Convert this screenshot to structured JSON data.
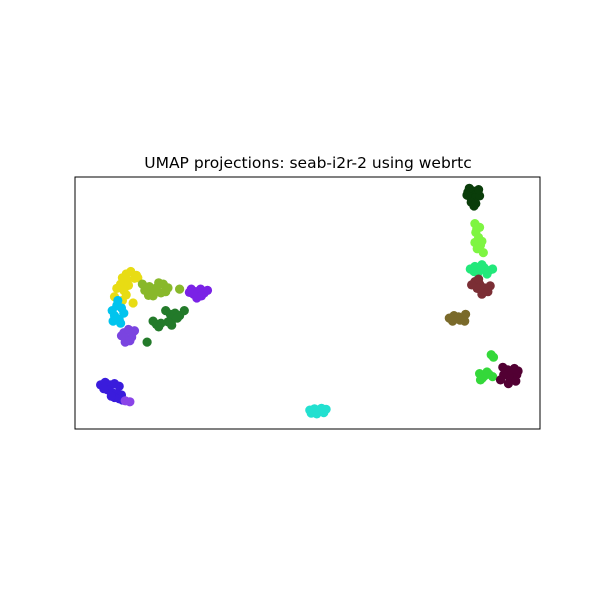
{
  "chart_data": {
    "type": "scatter",
    "title": "UMAP projections: seab-i2r-2 using webrtc",
    "xlabel": "",
    "ylabel": "",
    "xlim": [
      0,
      100
    ],
    "ylim": [
      0,
      100
    ],
    "grid": false,
    "legend": "none",
    "series": [
      {
        "color": "#0a3d0a",
        "points": [
          [
            84.5,
            94
          ],
          [
            85.5,
            94.5
          ],
          [
            86.5,
            93.5
          ],
          [
            85,
            92
          ],
          [
            86,
            91.5
          ],
          [
            87,
            92.5
          ],
          [
            85.2,
            90
          ],
          [
            86.2,
            89.5
          ],
          [
            84.8,
            95.5
          ],
          [
            86.8,
            95
          ],
          [
            85.8,
            88.5
          ],
          [
            84.3,
            92.8
          ]
        ]
      },
      {
        "color": "#7ef542",
        "points": [
          [
            86,
            81.5
          ],
          [
            87,
            80
          ],
          [
            86.2,
            78
          ],
          [
            86.8,
            76
          ],
          [
            86,
            74
          ],
          [
            87.2,
            73
          ],
          [
            86.5,
            71.5
          ],
          [
            87.5,
            74.5
          ],
          [
            86.4,
            79.5
          ],
          [
            87.8,
            70
          ]
        ]
      },
      {
        "color": "#22e87a",
        "points": [
          [
            85,
            63.5
          ],
          [
            86,
            64.5
          ],
          [
            87,
            63
          ],
          [
            88,
            64
          ],
          [
            89,
            62.8
          ],
          [
            85.8,
            62.5
          ],
          [
            87.5,
            65.2
          ],
          [
            86.6,
            61.8
          ],
          [
            88.6,
            61.5
          ],
          [
            89.8,
            63.5
          ]
        ]
      },
      {
        "color": "#7b2e35",
        "points": [
          [
            86,
            58.5
          ],
          [
            87,
            57.5
          ],
          [
            88,
            56
          ],
          [
            88.8,
            54.5
          ],
          [
            87.5,
            53.5
          ],
          [
            86.5,
            55.8
          ],
          [
            85.3,
            57.2
          ],
          [
            89.3,
            56.8
          ],
          [
            86.8,
            59.5
          ]
        ]
      },
      {
        "color": "#7a6a2a",
        "points": [
          [
            80.5,
            44
          ],
          [
            81.5,
            45
          ],
          [
            82.5,
            44.5
          ],
          [
            83.5,
            44
          ],
          [
            84,
            45.5
          ],
          [
            81.2,
            42.8
          ],
          [
            82.8,
            43.2
          ],
          [
            83.8,
            42.8
          ]
        ]
      },
      {
        "color": "#34d83a",
        "points": [
          [
            89.5,
            29.5
          ],
          [
            90,
            28.5
          ],
          [
            87,
            22
          ],
          [
            88,
            21
          ],
          [
            89,
            21.8
          ],
          [
            87.6,
            20.2
          ],
          [
            88.6,
            22.6
          ],
          [
            89.8,
            20.8
          ],
          [
            87.2,
            19.5
          ]
        ]
      },
      {
        "color": "#520033",
        "points": [
          [
            92,
            24.5
          ],
          [
            93,
            23.5
          ],
          [
            94,
            22
          ],
          [
            95,
            21.5
          ],
          [
            93.5,
            20
          ],
          [
            94.8,
            19
          ],
          [
            93.2,
            18
          ],
          [
            92.2,
            21.5
          ],
          [
            95.3,
            23
          ],
          [
            91.5,
            19.5
          ],
          [
            94.5,
            24
          ]
        ]
      },
      {
        "color": "#e8dc14",
        "points": [
          [
            10.2,
            60
          ],
          [
            11,
            61.5
          ],
          [
            12,
            62.5
          ],
          [
            11.2,
            59
          ],
          [
            9.8,
            57.5
          ],
          [
            10.5,
            55
          ],
          [
            11.5,
            57
          ],
          [
            8.5,
            52.5
          ],
          [
            10.2,
            51
          ],
          [
            12.5,
            50
          ],
          [
            11,
            53.2
          ],
          [
            12.8,
            59.8
          ],
          [
            13.2,
            61
          ],
          [
            9,
            55.8
          ],
          [
            13.5,
            60
          ]
        ]
      },
      {
        "color": "#00c4ee",
        "points": [
          [
            8,
            47
          ],
          [
            9,
            49
          ],
          [
            10,
            48
          ],
          [
            8.5,
            45
          ],
          [
            9.5,
            43.5
          ],
          [
            10.5,
            46
          ],
          [
            8.2,
            42.8
          ],
          [
            9.8,
            42
          ],
          [
            9.2,
            51
          ],
          [
            8.8,
            44
          ]
        ]
      },
      {
        "color": "#88b82a",
        "points": [
          [
            14.5,
            57.5
          ],
          [
            16,
            56.5
          ],
          [
            17.5,
            56
          ],
          [
            18,
            58
          ],
          [
            19,
            57.5
          ],
          [
            20,
            56
          ],
          [
            19.5,
            54.5
          ],
          [
            18.5,
            54
          ],
          [
            17,
            54.5
          ],
          [
            15.8,
            53
          ],
          [
            15,
            55
          ],
          [
            22.5,
            55.5
          ],
          [
            16.8,
            52.8
          ]
        ]
      },
      {
        "color": "#7a22e6",
        "points": [
          [
            25,
            55.5
          ],
          [
            26,
            54.5
          ],
          [
            27,
            55.5
          ],
          [
            26.5,
            53
          ],
          [
            27.8,
            54
          ],
          [
            28.5,
            55
          ],
          [
            25.5,
            53.5
          ],
          [
            26.2,
            52
          ],
          [
            24.6,
            54.2
          ],
          [
            27.2,
            52.8
          ]
        ]
      },
      {
        "color": "#237a2a",
        "points": [
          [
            19.5,
            47
          ],
          [
            20.5,
            45.5
          ],
          [
            21.5,
            46
          ],
          [
            22.5,
            45
          ],
          [
            23.5,
            47
          ],
          [
            21,
            43.5
          ],
          [
            20,
            42.5
          ],
          [
            18.5,
            42
          ],
          [
            17.5,
            41.5
          ],
          [
            16.8,
            42.8
          ],
          [
            18,
            40.5
          ],
          [
            20.8,
            41.2
          ],
          [
            22,
            44
          ],
          [
            15.5,
            34.5
          ]
        ]
      },
      {
        "color": "#7a44e0",
        "points": [
          [
            10.5,
            38.2
          ],
          [
            11.5,
            39.5
          ],
          [
            12.5,
            38.5
          ],
          [
            11,
            36
          ],
          [
            12.2,
            36.5
          ],
          [
            10,
            37
          ],
          [
            10.8,
            34.5
          ],
          [
            11.8,
            35
          ],
          [
            12.8,
            39
          ]
        ]
      },
      {
        "color": "#3a1cdc",
        "points": [
          [
            5.5,
            17.5
          ],
          [
            6.5,
            18.5
          ],
          [
            7.5,
            17.5
          ],
          [
            8.5,
            18
          ],
          [
            9.5,
            17
          ],
          [
            7,
            15.5
          ],
          [
            8,
            14.5
          ],
          [
            9,
            14
          ],
          [
            10,
            13.5
          ],
          [
            8.5,
            12.5
          ],
          [
            9.5,
            12
          ],
          [
            10.2,
            11.5
          ],
          [
            6.2,
            16
          ],
          [
            7.8,
            13
          ]
        ]
      },
      {
        "color": "#8a44e8",
        "points": [
          [
            10.8,
            11.2
          ],
          [
            11.8,
            10.8
          ]
        ]
      },
      {
        "color": "#22e0d0",
        "points": [
          [
            50.5,
            7.5
          ],
          [
            51.5,
            8
          ],
          [
            52.5,
            7.2
          ],
          [
            53.5,
            6.5
          ],
          [
            54,
            7.8
          ],
          [
            52,
            6
          ],
          [
            50.8,
            6.3
          ],
          [
            53,
            8.2
          ]
        ]
      }
    ]
  }
}
